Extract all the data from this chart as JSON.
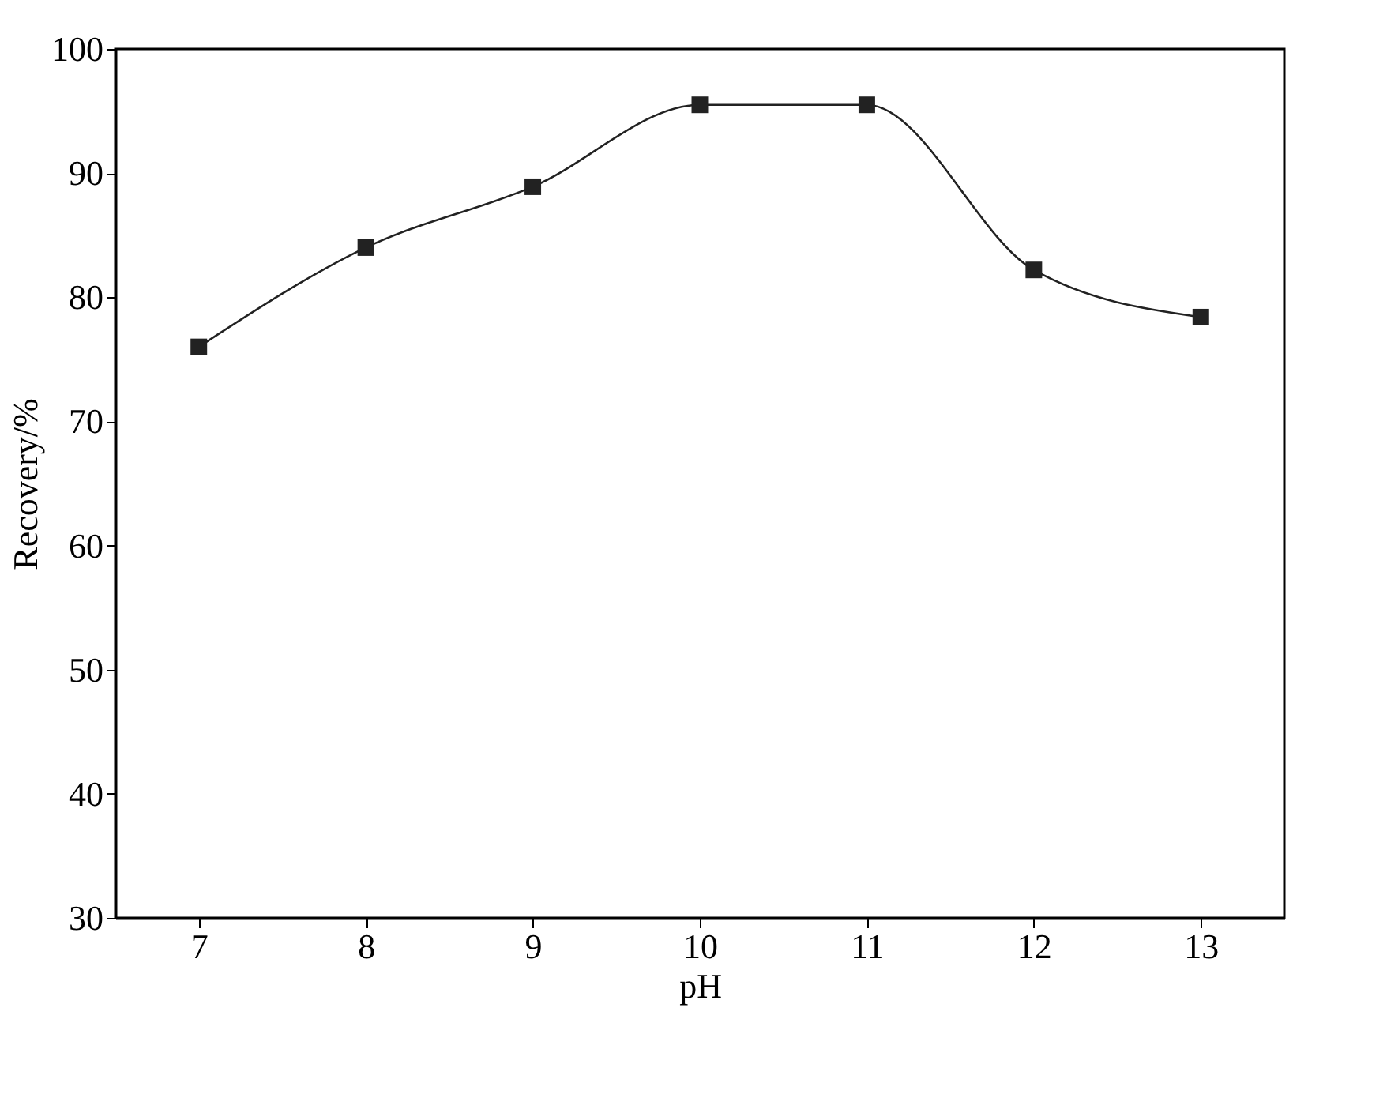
{
  "chart_data": {
    "type": "line",
    "xlabel": "pH",
    "ylabel": "Recovery/%",
    "x": [
      7,
      8,
      9,
      10,
      11,
      12,
      13
    ],
    "series": [
      {
        "color": "#222222",
        "values": [
          76.0,
          84.0,
          88.9,
          95.5,
          95.5,
          82.2,
          78.4
        ]
      }
    ],
    "xlim": [
      6.5,
      13.5
    ],
    "xticks": [
      7,
      8,
      9,
      10,
      11,
      12,
      13
    ],
    "ylim": [
      30,
      100
    ],
    "yticks": [
      30,
      40,
      50,
      60,
      70,
      80,
      90,
      100
    ],
    "marker": "square",
    "line_style": "solid",
    "grid": false
  }
}
